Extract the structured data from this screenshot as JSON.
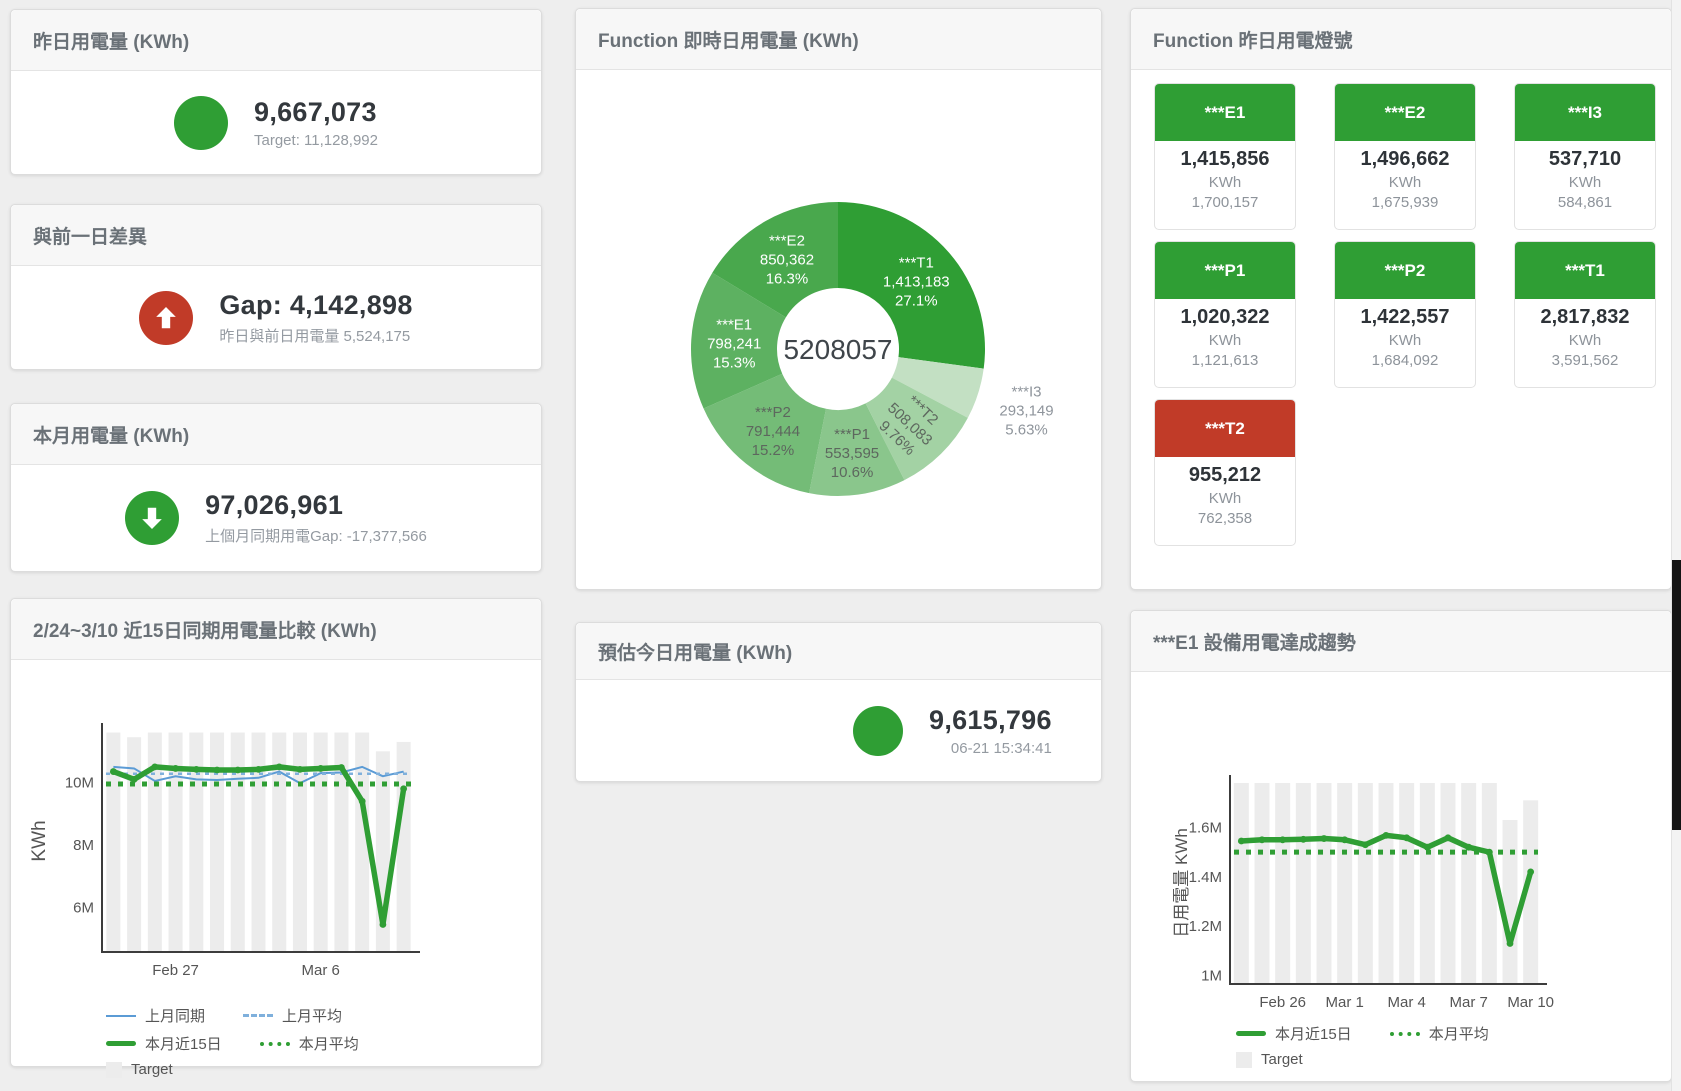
{
  "colors": {
    "green": "#2f9e34",
    "red": "#c13b28",
    "blue": "#5b9bd5",
    "blue_dash": "#7fb0dc",
    "target_bar": "#ececec",
    "axis": "#3c3c3c"
  },
  "cards": {
    "yesterday": {
      "title": "昨日用電量 (KWh)",
      "value": "9,667,073",
      "subtitle": "Target: 11,128,992",
      "icon": "circle",
      "icon_color": "#2f9e34"
    },
    "day_gap": {
      "title": "與前一日差異",
      "value": "Gap: 4,142,898",
      "subtitle": "昨日與前日用電量 5,524,175",
      "icon": "arrow-up",
      "icon_color": "#c13b28"
    },
    "month": {
      "title": "本月用電量 (KWh)",
      "value": "97,026,961",
      "subtitle": "上個月同期用電Gap: -17,377,566",
      "icon": "arrow-down",
      "icon_color": "#2f9e34"
    },
    "estimate": {
      "title": "預估今日用電量 (KWh)",
      "value": "9,615,796",
      "subtitle": "06-21 15:34:41",
      "icon": "circle",
      "icon_color": "#2f9e34"
    }
  },
  "donut": {
    "title": "Function 即時日用電量 (KWh)",
    "center_total": "5208057",
    "slices": [
      {
        "name": "***T1",
        "value": "1,413,183",
        "pct": "27.1%",
        "share": 27.1,
        "color": "#2f9e34",
        "label_color": "#ffffff"
      },
      {
        "name": "***I3",
        "value": "293,149",
        "pct": "5.63%",
        "share": 5.63,
        "color": "#c3e0c3",
        "label_color": "#8f959c",
        "outside": true
      },
      {
        "name": "***T2",
        "value": "508,083",
        "pct": "9.76%",
        "share": 9.76,
        "color": "#a3d2a4",
        "label_color": "#5d675e",
        "rotate": 43
      },
      {
        "name": "***P1",
        "value": "553,595",
        "pct": "10.6%",
        "share": 10.6,
        "color": "#8ac68c",
        "label_color": "#5d675e"
      },
      {
        "name": "***P2",
        "value": "791,444",
        "pct": "15.2%",
        "share": 15.2,
        "color": "#74bc77",
        "label_color": "#5d675e"
      },
      {
        "name": "***E1",
        "value": "798,241",
        "pct": "15.3%",
        "share": 15.3,
        "color": "#5db161",
        "label_color": "#ffffff"
      },
      {
        "name": "***E2",
        "value": "850,362",
        "pct": "16.3%",
        "share": 16.3,
        "color": "#49a84d",
        "label_color": "#ffffff"
      }
    ]
  },
  "lights": {
    "title": "Function 昨日用電燈號",
    "unit": "KWh",
    "tiles": [
      {
        "name": "***E1",
        "value": "1,415,856",
        "target": "1,700,157",
        "status": "green"
      },
      {
        "name": "***E2",
        "value": "1,496,662",
        "target": "1,675,939",
        "status": "green"
      },
      {
        "name": "***I3",
        "value": "537,710",
        "target": "584,861",
        "status": "green"
      },
      {
        "name": "***P1",
        "value": "1,020,322",
        "target": "1,121,613",
        "status": "green"
      },
      {
        "name": "***P2",
        "value": "1,422,557",
        "target": "1,684,092",
        "status": "green"
      },
      {
        "name": "***T1",
        "value": "2,817,832",
        "target": "3,591,562",
        "status": "green"
      },
      {
        "name": "***T2",
        "value": "955,212",
        "target": "762,358",
        "status": "red"
      }
    ]
  },
  "chart_data": [
    {
      "id": "compare15",
      "type": "line",
      "title": "2/24~3/10 近15日同期用電量比較 (KWh)",
      "ylabel": "KWh",
      "unit": "M KWh",
      "ylim": [
        4.6,
        11.65
      ],
      "yticks": [
        {
          "v": 6,
          "label": "6M"
        },
        {
          "v": 8,
          "label": "8M"
        },
        {
          "v": 10,
          "label": "10M"
        }
      ],
      "xticks": [
        {
          "i": 3,
          "label": "Feb 27"
        },
        {
          "i": 10,
          "label": "Mar 6"
        }
      ],
      "target_bars": [
        11.6,
        11.45,
        11.6,
        11.6,
        11.6,
        11.6,
        11.6,
        11.6,
        11.6,
        11.6,
        11.6,
        11.6,
        11.6,
        11.0,
        11.3
      ],
      "series": [
        {
          "name": "上月同期",
          "style": "thin",
          "color": "#5b9bd5",
          "values": [
            10.5,
            10.45,
            10.05,
            10.2,
            10.1,
            10.08,
            10.12,
            10.15,
            10.35,
            9.98,
            10.3,
            10.32,
            10.5,
            10.2,
            10.35
          ]
        },
        {
          "name": "上月平均",
          "style": "dash",
          "color": "#7fb0dc",
          "const": 10.28
        },
        {
          "name": "本月近15日",
          "style": "thick",
          "color": "#2f9e34",
          "values": [
            10.35,
            10.1,
            10.5,
            10.45,
            10.42,
            10.4,
            10.4,
            10.42,
            10.5,
            10.42,
            10.45,
            10.48,
            9.4,
            5.45,
            9.8
          ]
        },
        {
          "name": "本月平均",
          "style": "dots",
          "color": "#2f9e34",
          "const": 9.95
        }
      ],
      "legend_target": "Target"
    },
    {
      "id": "e1trend",
      "type": "line",
      "title": "***E1 設備用電達成趨勢",
      "ylabel": "日用電量 KWh",
      "unit": "M KWh",
      "ylim": [
        0.97,
        1.78
      ],
      "yticks": [
        {
          "v": 1,
          "label": "1M"
        },
        {
          "v": 1.2,
          "label": "1.2M"
        },
        {
          "v": 1.4,
          "label": "1.4M"
        },
        {
          "v": 1.6,
          "label": "1.6M"
        }
      ],
      "xticks": [
        {
          "i": 2,
          "label": "Feb 26"
        },
        {
          "i": 5,
          "label": "Mar 1"
        },
        {
          "i": 8,
          "label": "Mar 4"
        },
        {
          "i": 11,
          "label": "Mar 7"
        },
        {
          "i": 14,
          "label": "Mar 10"
        }
      ],
      "target_bars": [
        1.78,
        1.78,
        1.78,
        1.78,
        1.78,
        1.78,
        1.78,
        1.78,
        1.78,
        1.78,
        1.78,
        1.78,
        1.78,
        1.63,
        1.71
      ],
      "series": [
        {
          "name": "本月近15日",
          "style": "thick",
          "color": "#2f9e34",
          "values": [
            1.545,
            1.55,
            1.55,
            1.552,
            1.555,
            1.55,
            1.53,
            1.568,
            1.558,
            1.52,
            1.558,
            1.52,
            1.5,
            1.13,
            1.42
          ]
        },
        {
          "name": "本月平均",
          "style": "dots",
          "color": "#2f9e34",
          "const": 1.5
        }
      ],
      "legend_target": "Target"
    }
  ]
}
